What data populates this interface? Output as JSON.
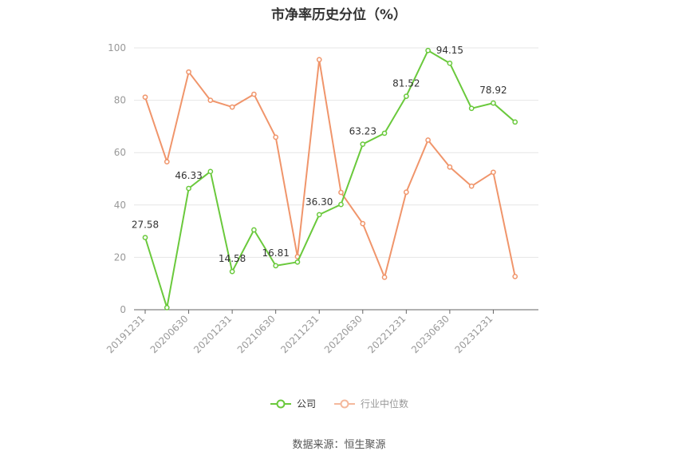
{
  "chart_data": {
    "type": "line",
    "title": "市净率历史分位（%）",
    "x": [
      "20191231",
      "20200331",
      "20200630",
      "20200930",
      "20201231",
      "20210331",
      "20210630",
      "20210930",
      "20211231",
      "20220331",
      "20220630",
      "20220930",
      "20221231",
      "20230331",
      "20230630",
      "20230930",
      "20231231",
      "20240331"
    ],
    "x_tick_labels": [
      "20191231",
      "20200630",
      "20201231",
      "20210630",
      "20211231",
      "20220630",
      "20221231",
      "20230630",
      "20231231"
    ],
    "ylim": [
      0,
      100
    ],
    "y_ticks": [
      0,
      20,
      40,
      60,
      80,
      100
    ],
    "grid": true,
    "legend_position": "bottom",
    "series": [
      {
        "name": "公司",
        "color": "#6ac93c",
        "values": [
          27.58,
          0.8,
          46.33,
          52.8,
          14.58,
          30.5,
          16.81,
          18.2,
          36.3,
          40.2,
          63.23,
          67.4,
          81.52,
          99.0,
          94.15,
          76.9,
          78.92,
          71.7
        ],
        "labels": {
          "0": "27.58",
          "2": "46.33",
          "4": "14.58",
          "6": "16.81",
          "8": "36.30",
          "10": "63.23",
          "12": "81.52",
          "14": "94.15",
          "16": "78.92"
        }
      },
      {
        "name": "行业中位数",
        "color": "#f0956b",
        "values": [
          81.2,
          56.5,
          90.8,
          80.0,
          77.4,
          82.3,
          65.9,
          20.3,
          95.5,
          44.8,
          32.9,
          12.4,
          44.9,
          64.8,
          54.5,
          47.2,
          52.5,
          12.7
        ]
      }
    ]
  },
  "legend": {
    "company": "公司",
    "industry": "行业中位数"
  },
  "source_text": "数据来源：恒生聚源"
}
